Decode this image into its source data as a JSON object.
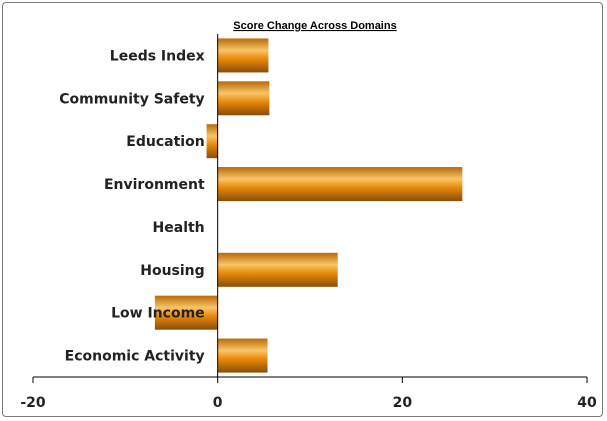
{
  "chart_data": {
    "type": "bar",
    "orientation": "horizontal",
    "title": "Score Change Across Domains",
    "xlabel": "",
    "ylabel": "",
    "categories": [
      "Leeds Index",
      "Community Safety",
      "Education",
      "Environment",
      "Health",
      "Housing",
      "Low Income",
      "Economic Activity"
    ],
    "values": [
      5.5,
      5.6,
      -1.2,
      26.5,
      0,
      13,
      -6.8,
      5.4
    ],
    "xlim": [
      -20,
      40
    ],
    "xticks": [
      "-20",
      "0",
      "20",
      "40"
    ],
    "grid": false,
    "legend": "none",
    "bar_color": "#e8890c",
    "bar_highlight": "#f9c567",
    "bar_shadow": "#8a4e06"
  }
}
